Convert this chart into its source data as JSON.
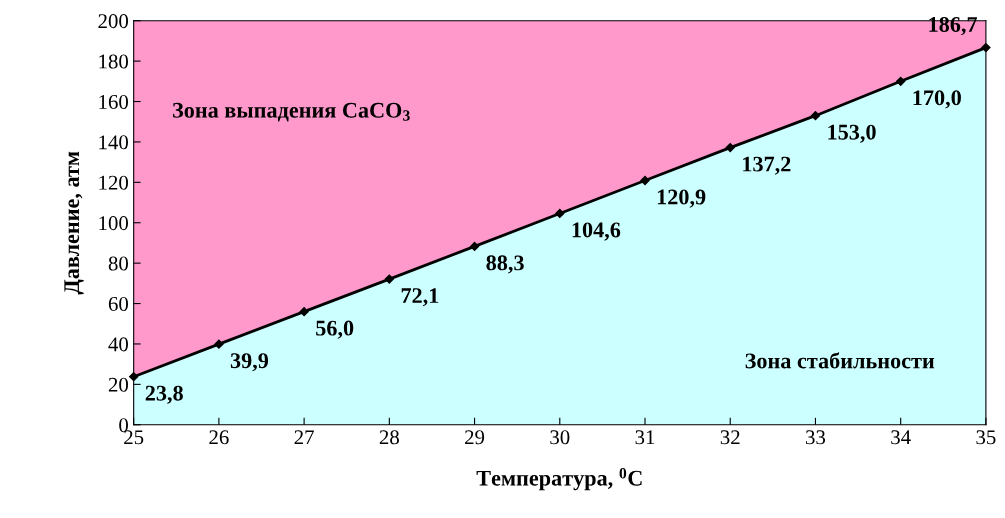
{
  "chart_data": {
    "type": "area",
    "xlabel": "Температура, $^{0}$C",
    "ylabel": "Давление, атм",
    "x": [
      25,
      26,
      27,
      28,
      29,
      30,
      31,
      32,
      33,
      34,
      35
    ],
    "series": [
      {
        "color": "#ccffff",
        "marker": "diamond",
        "values": [
          23.8,
          39.9,
          56.0,
          72.1,
          88.3,
          104.6,
          120.9,
          137.2,
          153.0,
          170.0,
          186.7
        ],
        "value_labels": [
          "23,8",
          "39,9",
          "56,0",
          "72,1",
          "88,3",
          "104,6",
          "120,9",
          "137,2",
          "153,0",
          "170,0",
          "186,7"
        ]
      }
    ],
    "bands": [
      {
        "axis": "y",
        "from": 0,
        "to": 200,
        "label": "Зона выпадения CaCO$_{3}$",
        "color": "#ff99cc"
      }
    ],
    "annotations": [
      "Зона стабильности"
    ],
    "xlim": [
      25,
      35
    ],
    "ylim": [
      0,
      200
    ],
    "xticks": [
      25,
      26,
      27,
      28,
      29,
      30,
      31,
      32,
      33,
      34,
      35
    ],
    "yticks": [
      0,
      20,
      40,
      60,
      80,
      100,
      120,
      140,
      160,
      180,
      200
    ],
    "grid": false,
    "legend": false
  }
}
